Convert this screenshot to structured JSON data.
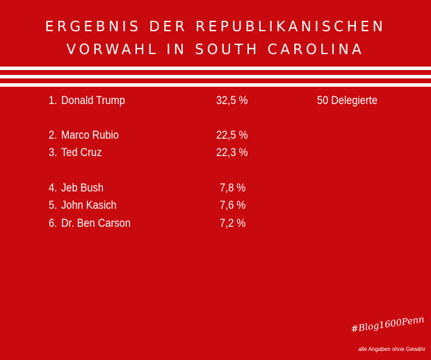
{
  "title": {
    "line1": "ERGEBNIS DER REPUBLIKANISCHEN",
    "line2": "VORWAHL IN SOUTH CAROLINA"
  },
  "results": [
    {
      "rank": "1.",
      "name": "Donald Trump",
      "percent": "32,5 %",
      "delegates": "50 Delegierte"
    },
    {
      "rank": "2.",
      "name": "Marco Rubio",
      "percent": "22,5 %"
    },
    {
      "rank": "3.",
      "name": "Ted Cruz",
      "percent": "22,3 %"
    },
    {
      "rank": "4.",
      "name": "Jeb Bush",
      "percent": "7,8 %"
    },
    {
      "rank": "5.",
      "name": "John Kasich",
      "percent": "7,6 %"
    },
    {
      "rank": "6.",
      "name": "Dr. Ben Carson",
      "percent": "7,2 %"
    }
  ],
  "footer": {
    "hashtag": "#Blog1600Penn",
    "disclaimer": "alle Angaben ohne Gewähr"
  },
  "colors": {
    "background": "#c8090e",
    "text": "#ffffff"
  }
}
